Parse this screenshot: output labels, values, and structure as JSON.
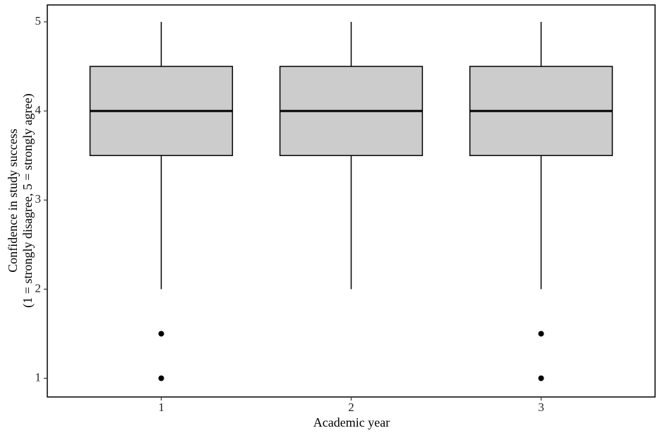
{
  "chart_data": {
    "type": "box",
    "xlabel": "Academic year",
    "ylabel": [
      "Confidence in study success",
      "(1 = strongly disagree, 5 = strongly agree)"
    ],
    "categories": [
      "1",
      "2",
      "3"
    ],
    "boxes": [
      {
        "min": 2,
        "q1": 3.5,
        "median": 4,
        "q3": 4.5,
        "max": 5,
        "outliers": [
          1.5,
          1
        ]
      },
      {
        "min": 2,
        "q1": 3.5,
        "median": 4,
        "q3": 4.5,
        "max": 5,
        "outliers": []
      },
      {
        "min": 2,
        "q1": 3.5,
        "median": 4,
        "q3": 4.5,
        "max": 5,
        "outliers": [
          1.5,
          1
        ]
      }
    ],
    "color": "#cccccc",
    "ylim": [
      0.79,
      5.19
    ],
    "yticks": [
      1,
      2,
      3,
      4,
      5
    ]
  }
}
